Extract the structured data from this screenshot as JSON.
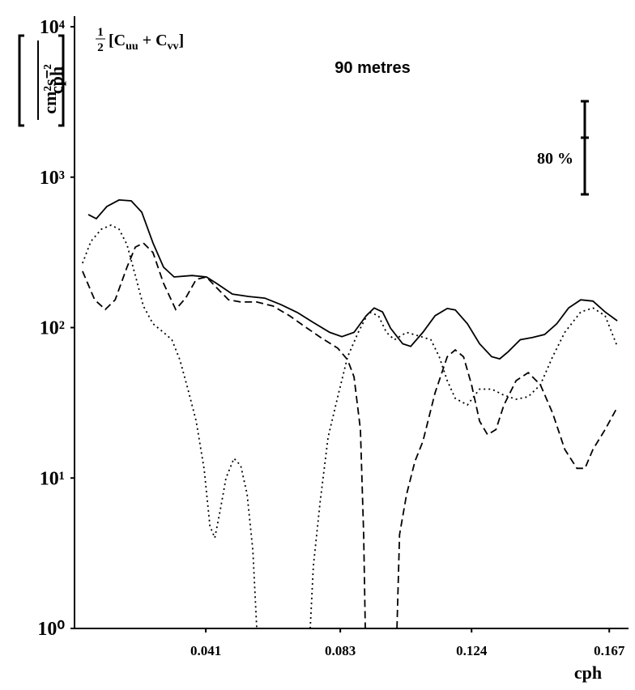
{
  "chart_data": {
    "type": "line",
    "title": "90 metres",
    "formula": {
      "num": "1",
      "den": "2",
      "parts": [
        "[C",
        "uu",
        " + C",
        "vv",
        "]"
      ]
    },
    "confidence_label": "80 %",
    "x_label": "cph",
    "y_label": {
      "num": "cm²s⁻²",
      "den": "cph"
    },
    "log_y": true,
    "xlim": [
      0,
      0.172
    ],
    "ylim": [
      1,
      10000
    ],
    "xticks": [
      0.041,
      0.083,
      0.124,
      0.167
    ],
    "yticks": [
      {
        "value": 1,
        "label": "10⁰"
      },
      {
        "value": 10,
        "label": "10¹"
      },
      {
        "value": 100,
        "label": "10²"
      },
      {
        "value": 1000,
        "label": "10³"
      },
      {
        "value": 10000,
        "label": "10⁴"
      }
    ],
    "series": [
      {
        "color": "#000000",
        "dash": "solid",
        "x": [
          0.0043,
          0.0068,
          0.0101,
          0.0139,
          0.0177,
          0.021,
          0.0245,
          0.0278,
          0.0311,
          0.0367,
          0.0412,
          0.0443,
          0.0493,
          0.0544,
          0.0594,
          0.0645,
          0.0696,
          0.0746,
          0.0797,
          0.0835,
          0.0873,
          0.0911,
          0.0936,
          0.0962,
          0.0987,
          0.1025,
          0.105,
          0.1088,
          0.1126,
          0.1164,
          0.1189,
          0.1227,
          0.1265,
          0.1303,
          0.1328,
          0.1354,
          0.1392,
          0.143,
          0.1468,
          0.1506,
          0.1543,
          0.1581,
          0.1619,
          0.1657,
          0.1695
        ],
        "values": [
          564,
          530,
          638,
          705,
          696,
          585,
          365,
          252,
          217,
          222,
          217,
          197,
          167,
          161,
          157,
          142,
          126,
          108,
          93,
          87,
          93,
          120,
          135,
          127,
          99,
          78,
          75,
          93,
          120,
          134,
          131,
          106,
          78,
          64,
          62,
          69,
          83,
          86,
          90,
          106,
          135,
          153,
          150,
          127,
          111
        ]
      },
      {
        "color": "#000000",
        "dash": "dashed",
        "x": [
          0.0025,
          0.0063,
          0.0096,
          0.0127,
          0.0164,
          0.019,
          0.0215,
          0.0245,
          0.0278,
          0.0316,
          0.0347,
          0.038,
          0.0412,
          0.0443,
          0.0481,
          0.0519,
          0.0569,
          0.062,
          0.0671,
          0.0721,
          0.0772,
          0.0822,
          0.0853,
          0.0873,
          0.0893,
          0.0903,
          0.0908,
          0.095,
          0.1007,
          0.1015,
          0.1037,
          0.1063,
          0.1088,
          0.1126,
          0.1164,
          0.1189,
          0.1215,
          0.124,
          0.1265,
          0.129,
          0.1316,
          0.1341,
          0.1379,
          0.1417,
          0.1455,
          0.1493,
          0.1531,
          0.1569,
          0.1594,
          0.1619,
          0.1657,
          0.1695
        ],
        "values": [
          237,
          153,
          132,
          153,
          252,
          343,
          365,
          315,
          197,
          132,
          157,
          209,
          217,
          185,
          153,
          148,
          148,
          139,
          120,
          101,
          85,
          73,
          61,
          47,
          21,
          4.2,
          1,
          null,
          1,
          4.2,
          7.8,
          12.9,
          17.5,
          36.9,
          64,
          71,
          64,
          41.7,
          23.9,
          19.4,
          21,
          30.6,
          44.4,
          50.2,
          41.7,
          27.0,
          15.5,
          11.6,
          11.6,
          15.5,
          21,
          29.5
        ]
      },
      {
        "color": "#000000",
        "dash": "dotted",
        "x": [
          0.0025,
          0.0051,
          0.0084,
          0.0114,
          0.0139,
          0.0164,
          0.019,
          0.0215,
          0.0245,
          0.0278,
          0.0304,
          0.0329,
          0.0354,
          0.038,
          0.0405,
          0.0423,
          0.0438,
          0.0455,
          0.0473,
          0.0498,
          0.0519,
          0.0539,
          0.0557,
          0.0569,
          0.065,
          0.0736,
          0.0746,
          0.0767,
          0.0792,
          0.0822,
          0.0853,
          0.0886,
          0.0919,
          0.0949,
          0.0974,
          0.0999,
          0.1037,
          0.1075,
          0.1113,
          0.1139,
          0.1164,
          0.1189,
          0.1227,
          0.1265,
          0.1303,
          0.1341,
          0.1379,
          0.1417,
          0.1455,
          0.1493,
          0.1531,
          0.1581,
          0.1619,
          0.1657,
          0.1695
        ],
        "values": [
          268,
          374,
          451,
          480,
          451,
          356,
          222,
          139,
          106,
          93,
          83,
          61,
          39,
          23.9,
          11.4,
          4.8,
          4.0,
          6.1,
          10.0,
          13.5,
          12.1,
          7.8,
          3.3,
          1,
          null,
          1,
          2.6,
          6.9,
          18.7,
          34.7,
          64,
          93,
          127,
          120,
          93,
          83,
          93,
          88,
          83,
          64,
          44.4,
          33.8,
          30.6,
          39,
          39,
          35.5,
          33.4,
          34.7,
          41.7,
          64,
          93,
          127,
          135,
          120,
          75
        ]
      }
    ]
  }
}
